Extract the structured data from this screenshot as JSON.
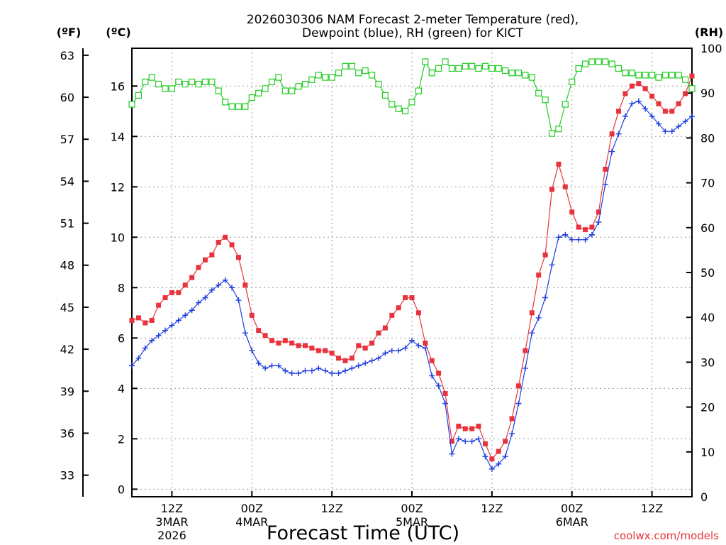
{
  "chart_data": {
    "type": "line",
    "title_line1": "2026030306 NAM Forecast 2-meter Temperature (red),",
    "title_line2": "Dewpoint (blue), RH (green) for KICT",
    "left_outer_axis_label": "(ºF)",
    "left_inner_axis_label": "(ºC)",
    "right_axis_label": "(RH)",
    "xlabel": "Forecast Time (UTC)",
    "credit": "coolwx.com/models",
    "x_unit": "forecast hour from 2026030306 UTC",
    "xlim": [
      0,
      84
    ],
    "ylim_celsius": [
      -0.3,
      17.5
    ],
    "ylim_rh": [
      0,
      100
    ],
    "fahrenheit_ticks": [
      "63",
      "60",
      "57",
      "54",
      "51",
      "48",
      "45",
      "42",
      "39",
      "36",
      "33"
    ],
    "celsius_ticks": [
      "16",
      "14",
      "12",
      "10",
      "8",
      "6",
      "4",
      "2",
      "0"
    ],
    "rh_ticks": [
      "100",
      "90",
      "80",
      "70",
      "60",
      "50",
      "40",
      "30",
      "20",
      "10",
      "0"
    ],
    "x_ticks": [
      {
        "hour": 6,
        "l1": "12Z",
        "l2": "3MAR",
        "l3": "2026"
      },
      {
        "hour": 18,
        "l1": "00Z",
        "l2": "4MAR",
        "l3": ""
      },
      {
        "hour": 30,
        "l1": "12Z",
        "l2": "",
        "l3": ""
      },
      {
        "hour": 42,
        "l1": "00Z",
        "l2": "5MAR",
        "l3": ""
      },
      {
        "hour": 54,
        "l1": "12Z",
        "l2": "",
        "l3": ""
      },
      {
        "hour": 66,
        "l1": "00Z",
        "l2": "6MAR",
        "l3": ""
      },
      {
        "hour": 78,
        "l1": "12Z",
        "l2": "",
        "l3": ""
      }
    ],
    "hours": [
      0,
      1,
      2,
      3,
      4,
      5,
      6,
      7,
      8,
      9,
      10,
      11,
      12,
      13,
      14,
      15,
      16,
      17,
      18,
      19,
      20,
      21,
      22,
      23,
      24,
      25,
      26,
      27,
      28,
      29,
      30,
      31,
      32,
      33,
      34,
      35,
      36,
      37,
      38,
      39,
      40,
      41,
      42,
      43,
      44,
      45,
      46,
      47,
      48,
      49,
      50,
      51,
      52,
      53,
      54,
      55,
      56,
      57,
      58,
      59,
      60,
      61,
      62,
      63,
      64,
      65,
      66,
      67,
      68,
      69,
      70,
      71,
      72,
      73,
      74,
      75,
      76,
      77,
      78,
      79,
      80,
      81,
      82,
      83,
      84
    ],
    "series": [
      {
        "name": "Temperature",
        "color": "#e8333d",
        "marker": "square",
        "values": [
          6.7,
          6.8,
          6.6,
          6.7,
          7.3,
          7.6,
          7.8,
          7.8,
          8.1,
          8.4,
          8.8,
          9.1,
          9.3,
          9.8,
          10.0,
          9.7,
          9.2,
          8.1,
          6.9,
          6.3,
          6.1,
          5.9,
          5.8,
          5.9,
          5.8,
          5.7,
          5.7,
          5.6,
          5.5,
          5.5,
          5.4,
          5.2,
          5.1,
          5.2,
          5.7,
          5.6,
          5.8,
          6.2,
          6.4,
          6.9,
          7.2,
          7.6,
          7.6,
          7.0,
          5.8,
          5.1,
          4.6,
          3.8,
          1.9,
          2.5,
          2.4,
          2.4,
          2.5,
          1.8,
          1.2,
          1.5,
          1.9,
          2.8,
          4.1,
          5.5,
          7.0,
          8.5,
          9.3,
          11.9,
          12.9,
          12.0,
          11.0,
          10.4,
          10.3,
          10.4,
          11.0,
          12.7,
          14.1,
          15.0,
          15.7,
          16.0,
          16.1,
          15.9,
          15.6,
          15.3,
          15.0,
          15.0,
          15.3,
          15.7,
          16.4
        ]
      },
      {
        "name": "Dewpoint",
        "color": "#1f3ee0",
        "marker": "plus",
        "values": [
          4.9,
          5.2,
          5.6,
          5.9,
          6.1,
          6.3,
          6.5,
          6.7,
          6.9,
          7.1,
          7.4,
          7.6,
          7.9,
          8.1,
          8.3,
          8.0,
          7.5,
          6.2,
          5.5,
          5.0,
          4.8,
          4.9,
          4.9,
          4.7,
          4.6,
          4.6,
          4.7,
          4.7,
          4.8,
          4.7,
          4.6,
          4.6,
          4.7,
          4.8,
          4.9,
          5.0,
          5.1,
          5.2,
          5.4,
          5.5,
          5.5,
          5.6,
          5.9,
          5.7,
          5.6,
          4.5,
          4.1,
          3.4,
          1.4,
          2.0,
          1.9,
          1.9,
          2.0,
          1.3,
          0.8,
          1.0,
          1.3,
          2.2,
          3.4,
          4.8,
          6.2,
          6.8,
          7.6,
          8.9,
          10.0,
          10.1,
          9.9,
          9.9,
          9.9,
          10.1,
          10.6,
          12.1,
          13.4,
          14.1,
          14.8,
          15.3,
          15.4,
          15.1,
          14.8,
          14.5,
          14.2,
          14.2,
          14.4,
          14.6,
          14.8
        ]
      },
      {
        "name": "RH",
        "color": "#22cc22",
        "marker": "open-square",
        "values": [
          87.5,
          89.5,
          92.5,
          93.5,
          92,
          91,
          91,
          92.5,
          92,
          92.5,
          92,
          92.5,
          92.5,
          90.5,
          88,
          87,
          87,
          87,
          89,
          90,
          91,
          92.5,
          93.5,
          90.5,
          90.5,
          91.5,
          92,
          93,
          94,
          93.5,
          93.5,
          94.5,
          96,
          96,
          94.5,
          95,
          94,
          92,
          89.5,
          87.5,
          86.5,
          86,
          88,
          90.5,
          97,
          94.5,
          95.5,
          97,
          95.5,
          95.5,
          96,
          96,
          95.5,
          96,
          95.5,
          95.5,
          95,
          94.5,
          94.5,
          94,
          93.5,
          90,
          88.5,
          81,
          82,
          87.5,
          92.5,
          95.5,
          96.5,
          97,
          97,
          97,
          96.5,
          95.5,
          94.5,
          94.5,
          94,
          94,
          94,
          93.5,
          94,
          94,
          94,
          93,
          91
        ]
      }
    ]
  }
}
